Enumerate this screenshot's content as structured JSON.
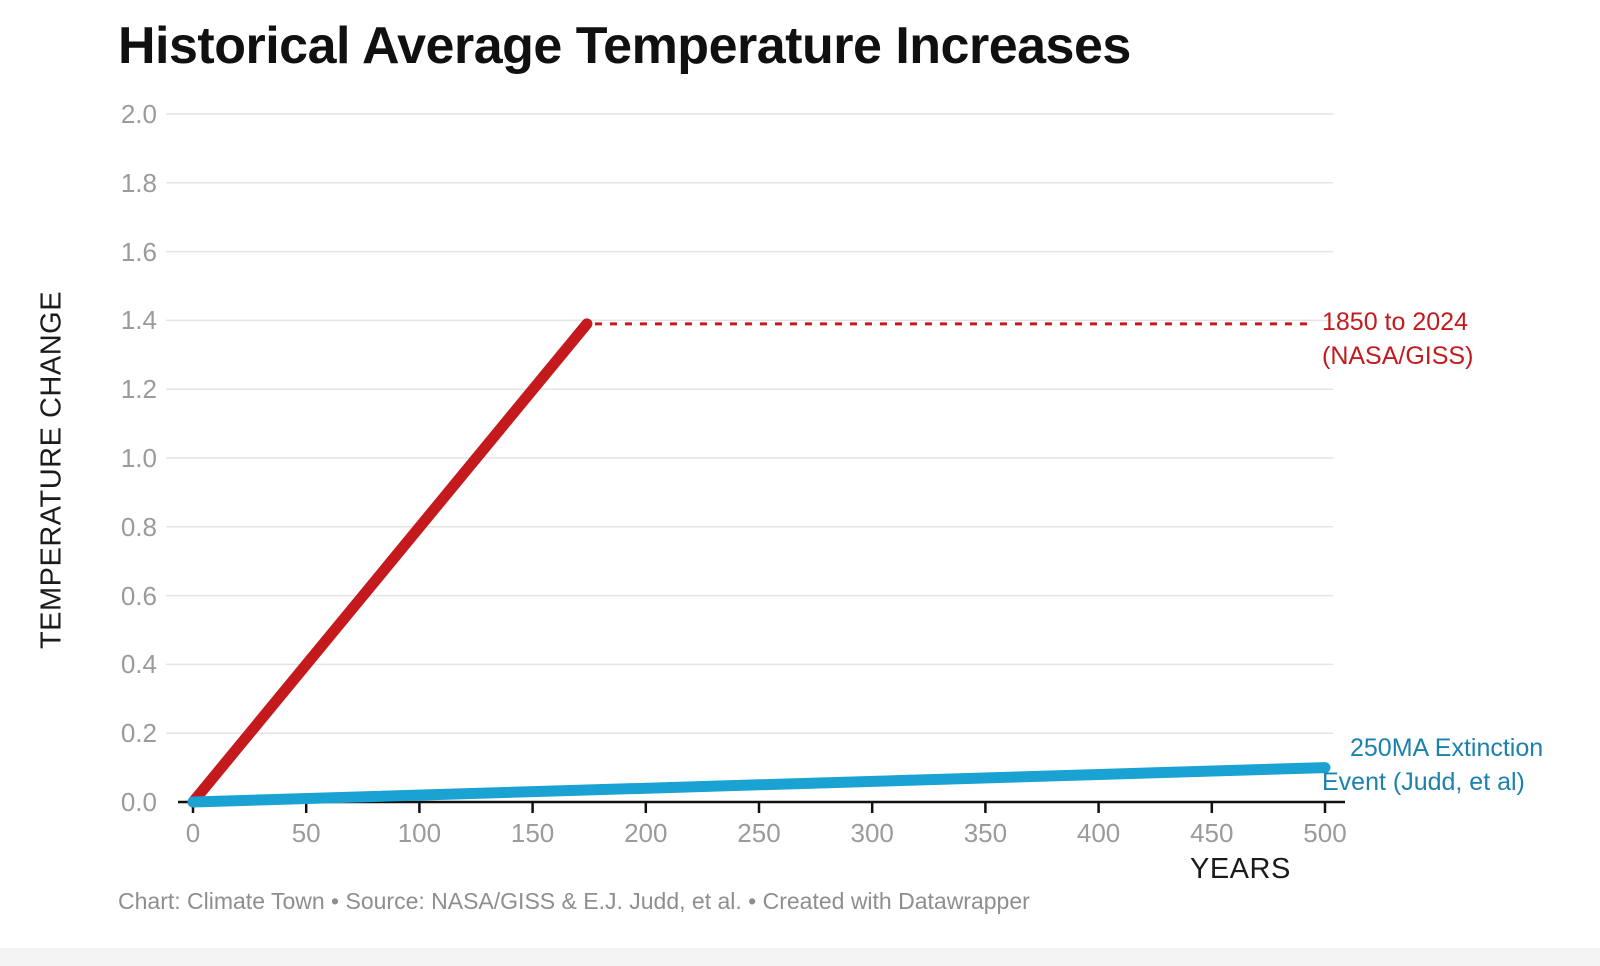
{
  "title": "Historical Average Temperature Increases",
  "chart_data": {
    "type": "line",
    "title": "Historical Average Temperature Increases",
    "xlabel": "YEARS",
    "ylabel": "TEMPERATURE CHANGE",
    "xlim": [
      0,
      500
    ],
    "ylim": [
      0,
      2.0
    ],
    "x_ticks": [
      0,
      50,
      100,
      150,
      200,
      250,
      300,
      350,
      400,
      450,
      500
    ],
    "x_tick_labels": [
      "0",
      "50",
      "100",
      "150",
      "200",
      "250",
      "300",
      "350",
      "400",
      "450",
      "500"
    ],
    "y_ticks": [
      0.0,
      0.2,
      0.4,
      0.6,
      0.8,
      1.0,
      1.2,
      1.4,
      1.6,
      1.8,
      2.0
    ],
    "y_tick_labels": [
      "0.0",
      "0.2",
      "0.4",
      "0.6",
      "0.8",
      "1.0",
      "1.2",
      "1.4",
      "1.6",
      "1.8",
      "2.0"
    ],
    "grid": "horizontal gridlines only",
    "legend_position": "labels at line ends, right side",
    "series": [
      {
        "name": "1850 to 2024 (NASA/GISS)",
        "color": "#c41a1d",
        "points": [
          [
            0,
            0.0
          ],
          [
            174,
            1.39
          ]
        ],
        "style": "solid",
        "annotation_leader": {
          "type": "dotted",
          "from_x": 174,
          "to_x": 494,
          "y": 1.39
        }
      },
      {
        "name": "250MA Extinction Event (Judd, et al)",
        "color": "#19a2d2",
        "points": [
          [
            0,
            0.0
          ],
          [
            500,
            0.1
          ]
        ],
        "style": "solid"
      }
    ]
  },
  "annotations": {
    "red": {
      "lines": [
        "1850 to 2024",
        "(NASA/GISS)"
      ],
      "color": "#c41a1d"
    },
    "blue": {
      "lines": [
        "250MA Extinction",
        "Event (Judd, et al)"
      ],
      "color": "#1b81ad"
    }
  },
  "colors": {
    "grid": "#e4e4e4",
    "axis": "#111111",
    "tick_label": "#9b9b9b",
    "title": "#101010",
    "footer": "#8e8e8e"
  },
  "footer": {
    "text": "Chart: Climate Town • Source: NASA/GISS & E.J. Judd, et al. • Created with Datawrapper"
  }
}
